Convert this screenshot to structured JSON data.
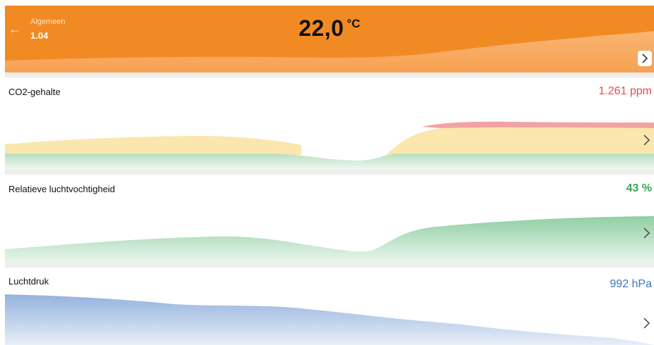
{
  "colors": {
    "header": "#f28a24",
    "co2_high": "#e94b4b",
    "humidity_ok": "#3aa55a",
    "pressure": "#3d74bf"
  },
  "header": {
    "back_icon": "arrow-left-icon",
    "parent_label": "Algemeen",
    "room_label": "1.04",
    "temperature_value": "22,0",
    "temperature_unit": "°C",
    "details_icon": "chevron-right-icon"
  },
  "cards": [
    {
      "label": "CO2-gehalte",
      "reading": "1.261 ppm",
      "reading_color": "#e94b4b",
      "icon": "chevron-right-icon"
    },
    {
      "label": "Relatieve luchtvochtigheid",
      "reading": "43 %",
      "reading_color": "#3aa55a",
      "icon": "chevron-right-icon"
    },
    {
      "label": "Luchtdruk",
      "reading": "992 hPa",
      "reading_color": "#3d74bf",
      "icon": "chevron-right-icon"
    }
  ]
}
